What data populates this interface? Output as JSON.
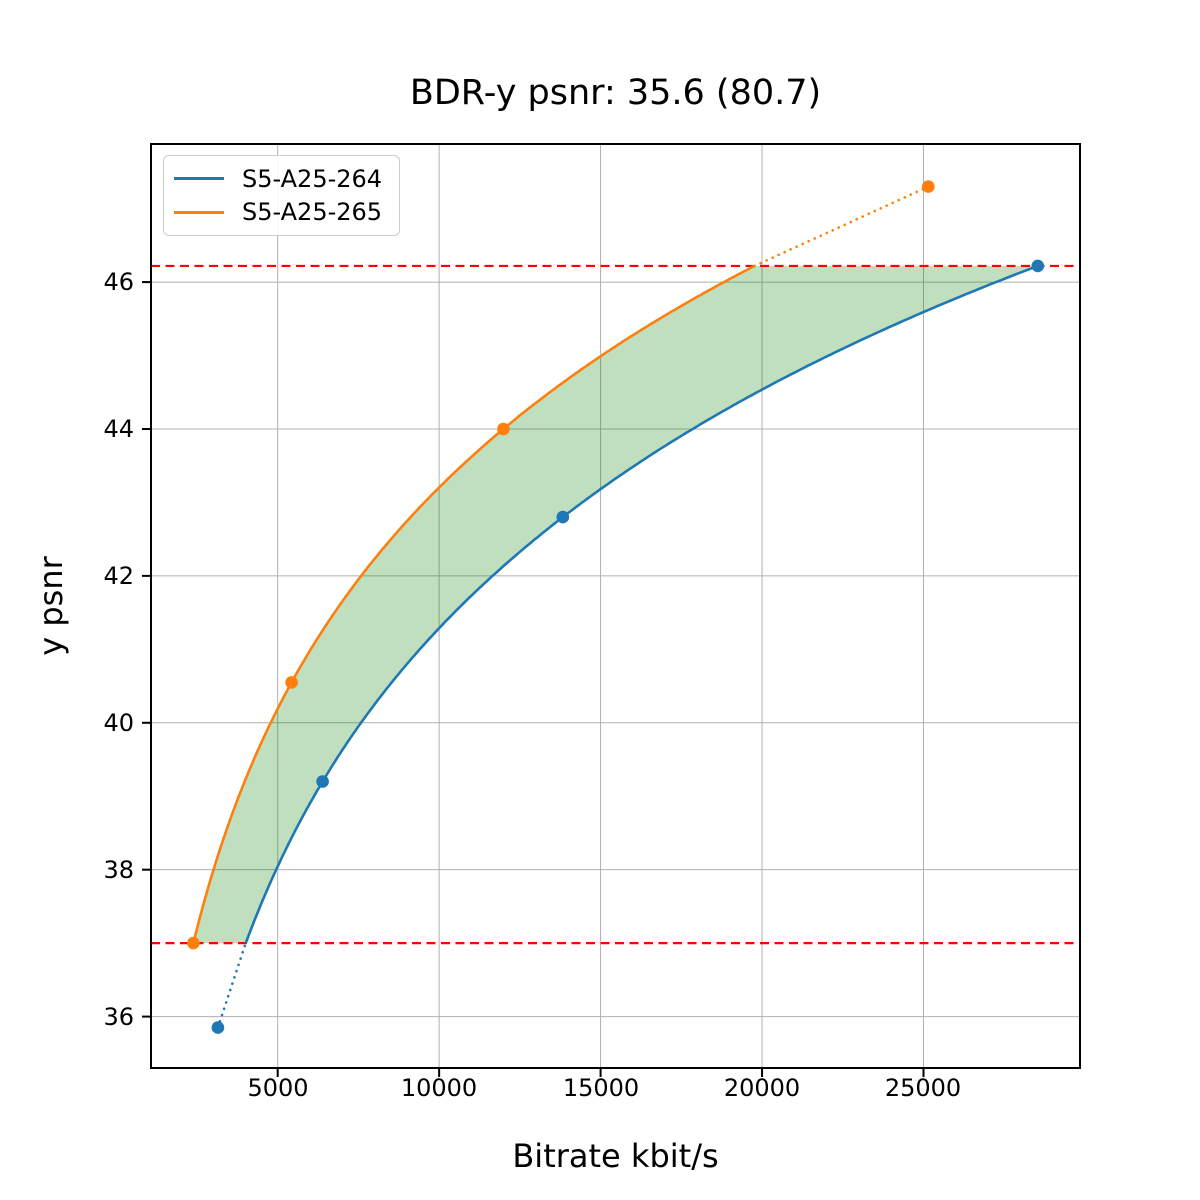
{
  "chart_data": {
    "type": "line",
    "title": "BDR-y psnr: 35.6 (80.7)",
    "xlabel": "Bitrate kbit/s",
    "ylabel": "y psnr",
    "xlim": [
      1077,
      29847
    ],
    "ylim": [
      35.3,
      47.88
    ],
    "x_ticks": [
      5000,
      10000,
      15000,
      20000,
      25000
    ],
    "y_ticks": [
      36,
      38,
      40,
      42,
      44,
      46
    ],
    "grid": true,
    "grid_color": "#b0b0b0",
    "spine_color": "#000000",
    "legend_position": "upper left",
    "interpolation": "pchip-logx",
    "series": [
      {
        "name": "S5-A25-264",
        "color": "#1f77b4",
        "x": [
          3150,
          6390,
          13830,
          28540
        ],
        "y": [
          35.85,
          39.2,
          42.8,
          46.22
        ]
      },
      {
        "name": "S5-A25-265",
        "color": "#ff7f0e",
        "x": [
          2390,
          5430,
          11990,
          25150
        ],
        "y": [
          37.0,
          40.55,
          44.0,
          47.3
        ]
      }
    ],
    "overlap_region": {
      "y_low": 37.0,
      "y_high": 46.22,
      "line_color": "#ff0000",
      "line_style": "dashed",
      "fill_color": "#008000",
      "fill_opacity": 0.25
    }
  }
}
